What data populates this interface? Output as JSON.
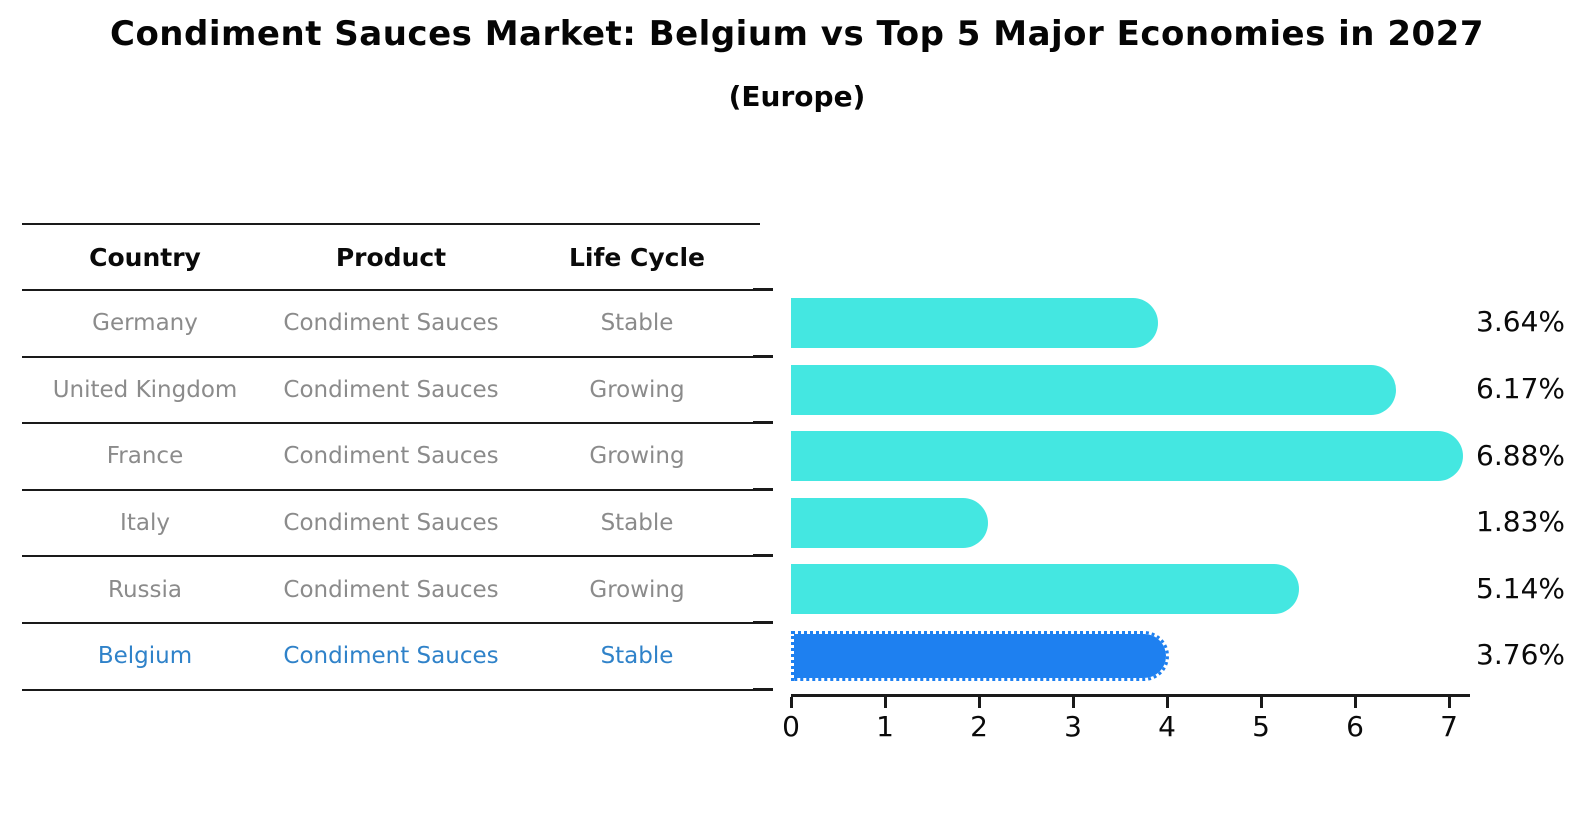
{
  "title": "Condiment Sauces Market: Belgium vs Top 5 Major Economies in 2027",
  "subtitle": "(Europe)",
  "table": {
    "headers": [
      "Country",
      "Product",
      "Life Cycle"
    ],
    "rows": [
      {
        "country": "Germany",
        "product": "Condiment Sauces",
        "life_cycle": "Stable",
        "highlight": false
      },
      {
        "country": "United Kingdom",
        "product": "Condiment Sauces",
        "life_cycle": "Growing",
        "highlight": false
      },
      {
        "country": "France",
        "product": "Condiment Sauces",
        "life_cycle": "Growing",
        "highlight": false
      },
      {
        "country": "Italy",
        "product": "Condiment Sauces",
        "life_cycle": "Stable",
        "highlight": false
      },
      {
        "country": "Russia",
        "product": "Condiment Sauces",
        "life_cycle": "Growing",
        "highlight": false
      },
      {
        "country": "Belgium",
        "product": "Condiment Sauces",
        "life_cycle": "Stable",
        "highlight": true
      }
    ]
  },
  "chart_data": {
    "type": "bar",
    "orientation": "horizontal",
    "title": "Condiment Sauces Market: Belgium vs Top 5 Major Economies in 2027",
    "subtitle": "(Europe)",
    "categories": [
      "Germany",
      "United Kingdom",
      "France",
      "Italy",
      "Russia",
      "Belgium"
    ],
    "values": [
      3.64,
      6.17,
      6.88,
      1.83,
      5.14,
      3.76
    ],
    "value_labels": [
      "3.64%",
      "6.17%",
      "6.88%",
      "1.83%",
      "5.14%",
      "3.76%"
    ],
    "x_tick_labels": [
      "0",
      "1",
      "2",
      "3",
      "4",
      "5",
      "6",
      "7"
    ],
    "xlim": [
      0,
      7.2
    ],
    "grid": false,
    "legend_position": "none",
    "highlight_index": 5
  },
  "colors": {
    "bar": "#44e7e1",
    "highlight_bar": "#1e80f0",
    "highlight_text": "#2f82c9",
    "table_text": "#8b8b8b",
    "heading_text": "#050505",
    "axis_line": "#1a1a1a"
  }
}
